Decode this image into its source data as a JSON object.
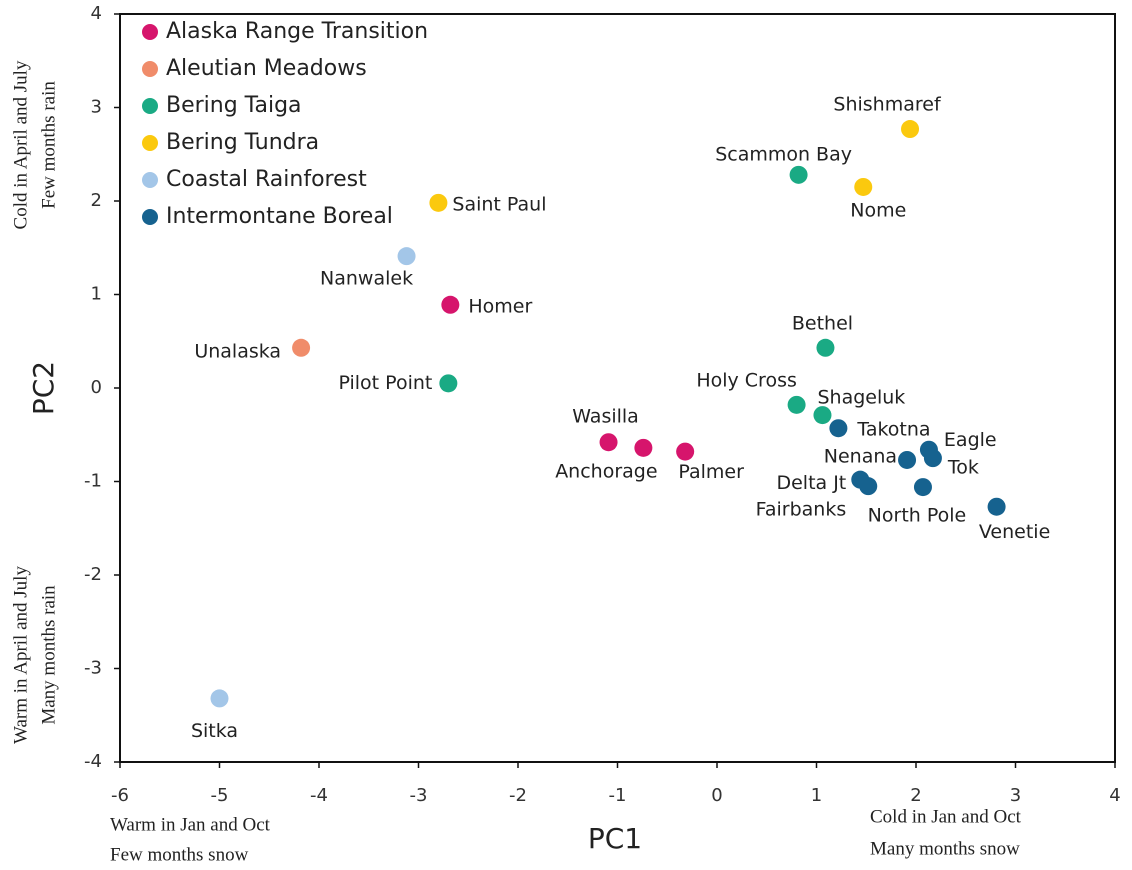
{
  "chart_data": {
    "type": "scatter",
    "x_label": "PC1",
    "y_label": "PC2",
    "xlim": [
      -6,
      4
    ],
    "ylim": [
      -4,
      4
    ],
    "xticks": [
      -6,
      -5,
      -4,
      -3,
      -2,
      -1,
      0,
      1,
      2,
      3,
      4
    ],
    "yticks": [
      -4,
      -3,
      -2,
      -1,
      0,
      1,
      2,
      3,
      4
    ],
    "grid": false,
    "legend": "upper left",
    "annotations": {
      "y_high": [
        "Cold in April and July",
        "Few months rain"
      ],
      "y_low": [
        "Warm in April and July",
        "Many months rain"
      ],
      "x_low": [
        "Warm in Jan and Oct",
        "Few months snow"
      ],
      "x_high": [
        "Cold in Jan and Oct",
        "Many months snow"
      ]
    },
    "series": [
      {
        "name": "Alaska Range Transition",
        "color": "#d6156c",
        "labels": [
          "Homer",
          "Wasilla",
          "Anchorage",
          "Palmer"
        ],
        "x": [
          -2.68,
          -1.09,
          -0.74,
          -0.32
        ],
        "values": [
          0.89,
          -0.58,
          -0.64,
          -0.68
        ]
      },
      {
        "name": "Aleutian Meadows",
        "color": "#f08c6a",
        "labels": [
          "Unalaska"
        ],
        "x": [
          -4.18
        ],
        "values": [
          0.43
        ]
      },
      {
        "name": "Bering Taiga",
        "color": "#1aaa84",
        "labels": [
          "Pilot Point",
          "Scammon Bay",
          "Bethel",
          "Holy Cross",
          "Shageluk"
        ],
        "x": [
          -2.7,
          0.82,
          1.09,
          0.8,
          1.06
        ],
        "values": [
          0.05,
          2.28,
          0.43,
          -0.18,
          -0.29
        ]
      },
      {
        "name": "Bering Tundra",
        "color": "#fbc90e",
        "labels": [
          "Saint Paul",
          "Shishmaref",
          "Nome"
        ],
        "x": [
          -2.8,
          1.94,
          1.47
        ],
        "values": [
          1.98,
          2.77,
          2.15
        ]
      },
      {
        "name": "Coastal Rainforest",
        "color": "#a3c6e8",
        "labels": [
          "Nanwalek",
          "Sitka"
        ],
        "x": [
          -3.12,
          -5.0
        ],
        "values": [
          1.41,
          -3.32
        ]
      },
      {
        "name": "Intermontane Boreal",
        "color": "#16628f",
        "labels": [
          "Takotna",
          "Eagle",
          "Tok",
          "Nenana",
          "Delta Jt",
          "Fairbanks",
          "North Pole",
          "Venetie"
        ],
        "x": [
          1.22,
          2.13,
          2.17,
          1.91,
          1.44,
          1.52,
          2.07,
          2.81
        ],
        "values": [
          -0.43,
          -0.66,
          -0.75,
          -0.77,
          -0.98,
          -1.05,
          -1.06,
          -1.27
        ]
      }
    ]
  }
}
